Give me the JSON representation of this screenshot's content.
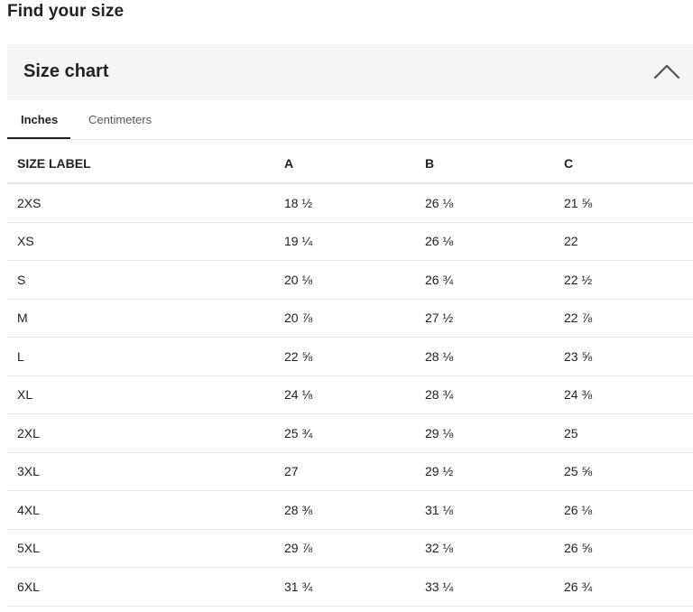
{
  "heading": "Find your size",
  "accordion": {
    "title": "Size chart",
    "toggle_icon": "chevron-up-icon"
  },
  "tabs": [
    {
      "label": "Inches",
      "selected": true
    },
    {
      "label": "Centimeters",
      "selected": false
    }
  ],
  "table": {
    "headers": [
      "SIZE LABEL",
      "A",
      "B",
      "C"
    ],
    "rows": [
      [
        "2XS",
        "18 ½",
        "26 ⅛",
        "21 ⅝"
      ],
      [
        "XS",
        "19 ¼",
        "26 ⅛",
        "22"
      ],
      [
        "S",
        "20 ⅛",
        "26 ¾",
        "22 ½"
      ],
      [
        "M",
        "20 ⅞",
        "27 ½",
        "22 ⅞"
      ],
      [
        "L",
        "22 ⅝",
        "28 ⅛",
        "23 ⅝"
      ],
      [
        "XL",
        "24 ⅛",
        "28 ¾",
        "24 ⅜"
      ],
      [
        "2XL",
        "25 ¾",
        "29 ⅛",
        "25"
      ],
      [
        "3XL",
        "27",
        "29 ½",
        "25 ⅝"
      ],
      [
        "4XL",
        "28 ⅜",
        "31 ⅛",
        "26 ⅛"
      ],
      [
        "5XL",
        "29 ⅞",
        "32 ⅛",
        "26 ⅝"
      ],
      [
        "6XL",
        "31 ¾",
        "33 ¼",
        "26 ¾"
      ]
    ]
  }
}
